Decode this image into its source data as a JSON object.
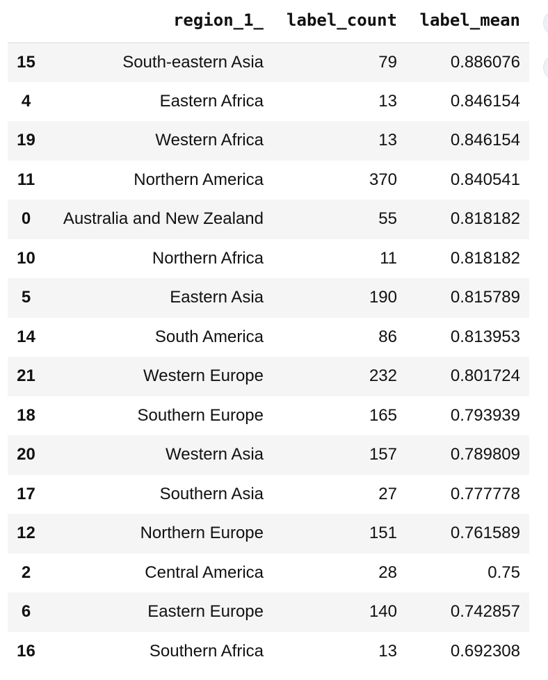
{
  "table": {
    "columns": [
      "",
      "region_1_",
      "label_count",
      "label_mean"
    ],
    "rows": [
      {
        "index": "15",
        "region": "South-eastern Asia",
        "count": "79",
        "mean": "0.886076"
      },
      {
        "index": "4",
        "region": "Eastern Africa",
        "count": "13",
        "mean": "0.846154"
      },
      {
        "index": "19",
        "region": "Western Africa",
        "count": "13",
        "mean": "0.846154"
      },
      {
        "index": "11",
        "region": "Northern America",
        "count": "370",
        "mean": "0.840541"
      },
      {
        "index": "0",
        "region": "Australia and New Zealand",
        "count": "55",
        "mean": "0.818182"
      },
      {
        "index": "10",
        "region": "Northern Africa",
        "count": "11",
        "mean": "0.818182"
      },
      {
        "index": "5",
        "region": "Eastern Asia",
        "count": "190",
        "mean": "0.815789"
      },
      {
        "index": "14",
        "region": "South America",
        "count": "86",
        "mean": "0.813953"
      },
      {
        "index": "21",
        "region": "Western Europe",
        "count": "232",
        "mean": "0.801724"
      },
      {
        "index": "18",
        "region": "Southern Europe",
        "count": "165",
        "mean": "0.793939"
      },
      {
        "index": "20",
        "region": "Western Asia",
        "count": "157",
        "mean": "0.789809"
      },
      {
        "index": "17",
        "region": "Southern Asia",
        "count": "27",
        "mean": "0.777778"
      },
      {
        "index": "12",
        "region": "Northern Europe",
        "count": "151",
        "mean": "0.761589"
      },
      {
        "index": "2",
        "region": "Central America",
        "count": "28",
        "mean": "0.75"
      },
      {
        "index": "6",
        "region": "Eastern Europe",
        "count": "140",
        "mean": "0.742857"
      },
      {
        "index": "16",
        "region": "Southern Africa",
        "count": "13",
        "mean": "0.692308"
      }
    ]
  },
  "colors": {
    "stripe": "#f5f5f5",
    "text": "#111111",
    "header_rule": "#d8d8d8"
  }
}
